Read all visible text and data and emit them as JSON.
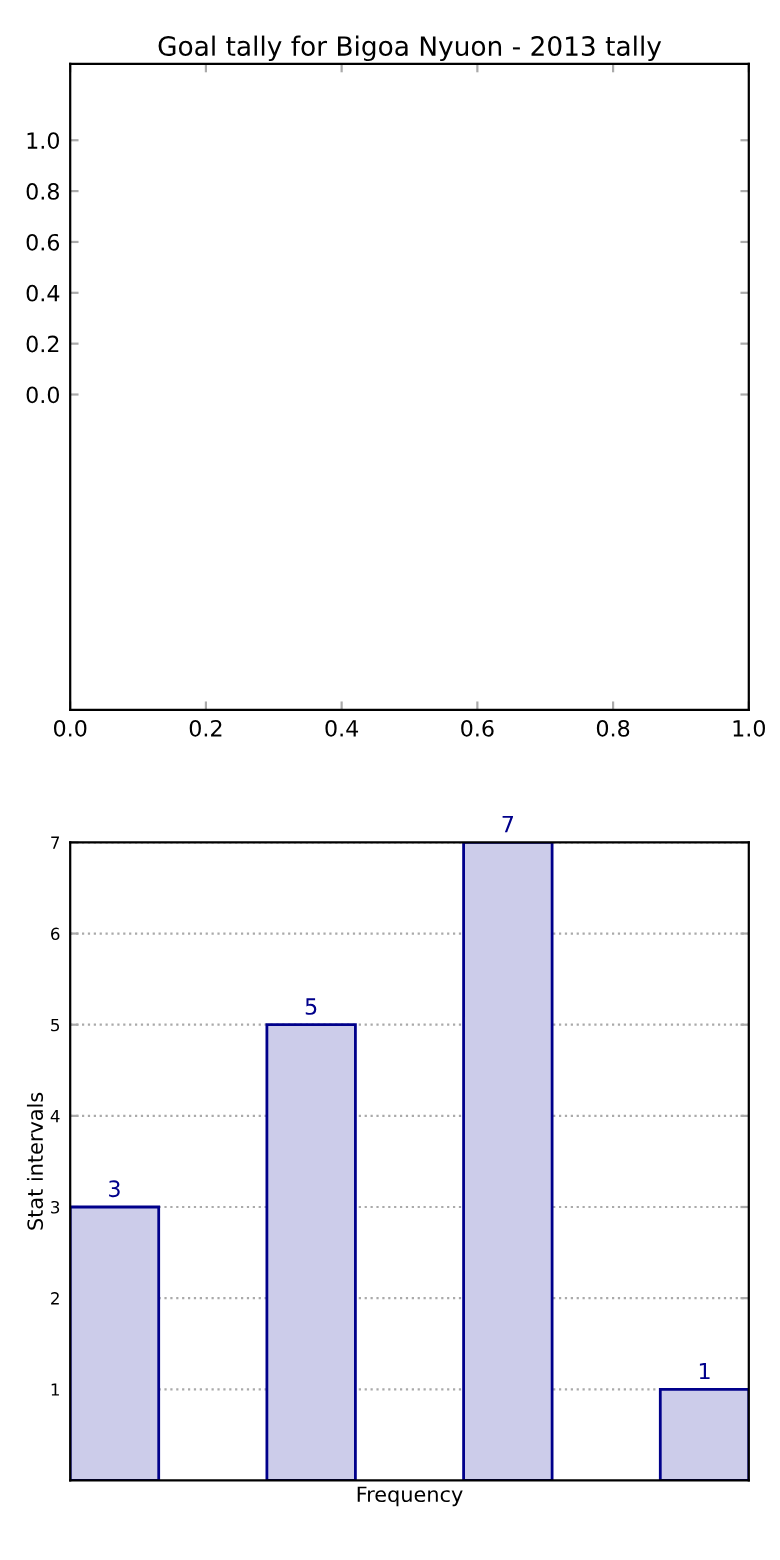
{
  "chart_data": [
    {
      "type": "line",
      "title": "Goal tally for Bigoa Nyuon - 2013 tally",
      "xlim": [
        0,
        1
      ],
      "xticks": [
        {
          "value": 0,
          "label": "0.0"
        },
        0.2,
        0.4,
        0.6,
        0.8,
        {
          "value": 1,
          "label": "1.0"
        }
      ],
      "ylim": [
        -1.24,
        1.3
      ],
      "yticks": [
        {
          "value": 0,
          "label": "0.0"
        },
        0.2,
        0.4,
        0.6,
        0.8,
        {
          "value": 1,
          "label": "1.0"
        }
      ],
      "grid": false,
      "legend": false
    },
    {
      "type": "bar",
      "categories": [
        null,
        null,
        null,
        null
      ],
      "xlabel": "Frequency",
      "ylabel": "Stat intervals",
      "series": [
        {
          "color": "#ccccea",
          "values": [
            3,
            5,
            7,
            1
          ]
        }
      ],
      "ylim": [
        0,
        7
      ],
      "yticks": [
        1,
        2,
        3,
        4,
        5,
        6,
        7
      ],
      "grid": "y",
      "line_style": "dotted",
      "data_labels": true,
      "legend": false
    }
  ]
}
